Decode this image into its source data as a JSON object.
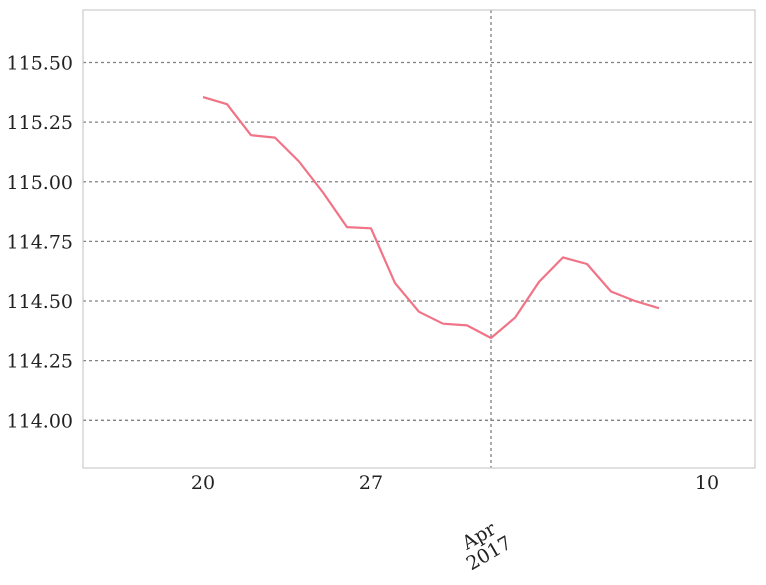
{
  "chart_data": {
    "type": "line",
    "title": "",
    "xlabel": "",
    "ylabel": "",
    "x_tick_labels": [
      "20",
      "27",
      "Apr\n2017",
      "10"
    ],
    "x_ticks": [
      "2017-03-20",
      "2017-03-27",
      "2017-04-01",
      "2017-04-10"
    ],
    "xlim": [
      "2017-03-15",
      "2017-04-12"
    ],
    "ylim": [
      113.8,
      115.72
    ],
    "y_ticks": [
      114.0,
      114.25,
      114.5,
      114.75,
      115.0,
      115.25,
      115.5
    ],
    "y_tick_labels": [
      "114.00",
      "114.25",
      "114.50",
      "114.75",
      "115.00",
      "115.25",
      "115.50"
    ],
    "grid": {
      "y": true,
      "x": "month-boundary only",
      "style": "dotted"
    },
    "series": [
      {
        "color": "#f07386",
        "x": [
          "2017-03-20",
          "2017-03-21",
          "2017-03-22",
          "2017-03-23",
          "2017-03-24",
          "2017-03-25",
          "2017-03-26",
          "2017-03-27",
          "2017-03-28",
          "2017-03-29",
          "2017-03-30",
          "2017-03-31",
          "2017-04-01",
          "2017-04-02",
          "2017-04-03",
          "2017-04-04",
          "2017-04-05",
          "2017-04-06",
          "2017-04-07",
          "2017-04-08"
        ],
        "values": [
          115.355,
          115.325,
          115.195,
          115.185,
          115.085,
          114.955,
          114.81,
          114.805,
          114.575,
          114.455,
          114.405,
          114.398,
          114.345,
          114.43,
          114.58,
          114.683,
          114.655,
          114.54,
          114.5,
          114.47
        ]
      }
    ]
  }
}
